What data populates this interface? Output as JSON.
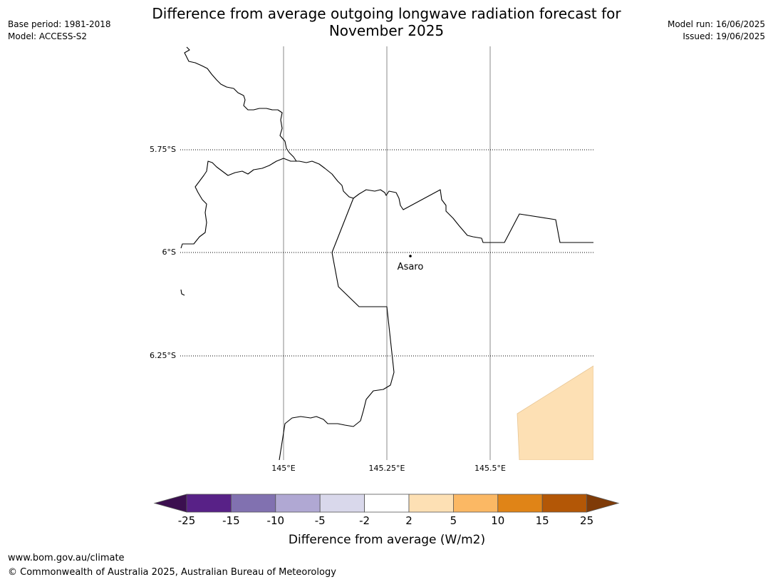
{
  "header": {
    "title_line1": "Difference from average outgoing longwave radiation forecast for",
    "title_line2": "November 2025",
    "base_period": "Base period: 1981-2018",
    "model": "Model: ACCESS-S2",
    "model_run": "Model run: 16/06/2025",
    "issued": "Issued: 19/06/2025"
  },
  "map": {
    "lat_labels": [
      "5.75°S",
      "6°S",
      "6.25°S"
    ],
    "lon_labels": [
      "145°E",
      "145.25°E",
      "145.5°E"
    ],
    "place": {
      "name": "Asaro"
    },
    "colors": {
      "border": "#000000",
      "gridline": "#888888",
      "positive_anomaly_fill": "#fde0b4"
    }
  },
  "legend": {
    "label": "Difference from average (W/m2)",
    "ticks": [
      "-25",
      "-15",
      "-10",
      "-5",
      "-2",
      "2",
      "5",
      "10",
      "15",
      "25"
    ],
    "colors": [
      "#3b0f4f",
      "#582187",
      "#8171b0",
      "#b0a8d3",
      "#d9d8eb",
      "#ffffff",
      "#fde0b4",
      "#fbb864",
      "#e08417",
      "#b35706",
      "#7f3b08"
    ]
  },
  "footer": {
    "url": "www.bom.gov.au/climate",
    "copyright": "© Commonwealth of Australia 2025, Australian Bureau of Meteorology"
  }
}
